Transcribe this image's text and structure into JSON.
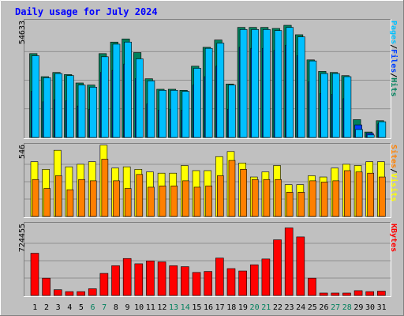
{
  "chart_data": {
    "type": "bar",
    "title": "Daily usage for July 2024",
    "categories": [
      "1",
      "2",
      "3",
      "4",
      "5",
      "6",
      "7",
      "8",
      "9",
      "10",
      "11",
      "12",
      "13",
      "14",
      "15",
      "16",
      "17",
      "18",
      "19",
      "20",
      "21",
      "22",
      "23",
      "24",
      "25",
      "26",
      "27",
      "28",
      "29",
      "30",
      "31"
    ],
    "weekend_days": [
      "6",
      "7",
      "13",
      "14",
      "20",
      "21",
      "27",
      "28"
    ],
    "colors": {
      "hits": "#00805c",
      "files": "#0040ff",
      "pages": "#00c0ff",
      "visits": "#ffff00",
      "sites": "#ff8000",
      "kbytes": "#ff0000",
      "title": "#0000ff",
      "weekend_label": "#00805c"
    },
    "panels": [
      {
        "name": "hits-files-pages",
        "y_max_label": "54633",
        "ylim": [
          0,
          54633
        ],
        "legend": [
          "Pages",
          "/",
          "Files",
          "/",
          "Hits"
        ],
        "series": [
          {
            "name": "Hits",
            "values": [
              40000,
              29000,
              31000,
              30000,
              26000,
              25000,
              40000,
              45500,
              47000,
              40500,
              28000,
              23000,
              23000,
              22500,
              34000,
              43000,
              46500,
              25500,
              52500,
              52500,
              52500,
              52000,
              53500,
              49000,
              37000,
              31500,
              31000,
              29500,
              8500,
              2600,
              8000
            ]
          },
          {
            "name": "Files",
            "values": [
              22000,
              17000,
              18000,
              17500,
              15000,
              13500,
              31000,
              32000,
              35000,
              28000,
              16000,
              13000,
              13500,
              13000,
              25000,
              29000,
              34000,
              13500,
              43000,
              42500,
              42500,
              41500,
              44000,
              39000,
              26500,
              21000,
              20500,
              18500,
              6000,
              2000,
              6500
            ]
          },
          {
            "name": "Pages",
            "values": [
              39000,
              28500,
              30500,
              29500,
              25000,
              24000,
              38500,
              44500,
              45500,
              37500,
              27000,
              22500,
              22500,
              22000,
              33000,
              42500,
              45000,
              25000,
              51500,
              51500,
              51500,
              51000,
              52500,
              48000,
              36500,
              30500,
              30500,
              29000,
              3800,
              1200,
              7500
            ]
          }
        ]
      },
      {
        "name": "visits-sites",
        "y_max_label": "546",
        "ylim": [
          0,
          546
        ],
        "legend": [
          "Sites",
          "/",
          "Visits"
        ],
        "series": [
          {
            "name": "Visits",
            "values": [
              430,
              370,
              520,
              390,
              410,
              430,
              560,
              380,
              390,
              370,
              350,
              340,
              340,
              400,
              360,
              360,
              470,
              510,
              420,
              310,
              350,
              400,
              250,
              250,
              320,
              310,
              380,
              410,
              400,
              430,
              430
            ]
          },
          {
            "name": "Sites",
            "values": [
              290,
              220,
              320,
              210,
              290,
              280,
              450,
              280,
              220,
              330,
              230,
              240,
              240,
              280,
              230,
              240,
              320,
              440,
              370,
              290,
              290,
              290,
              190,
              190,
              280,
              270,
              280,
              360,
              350,
              340,
              310
            ]
          }
        ]
      },
      {
        "name": "kbytes",
        "y_max_label": "724455",
        "ylim": [
          0,
          724455
        ],
        "legend": [
          "KBytes"
        ],
        "series": [
          {
            "name": "KBytes",
            "values": [
              440000,
              180000,
              60000,
              40000,
              40000,
              70000,
              230000,
              310000,
              385000,
              330000,
              360000,
              350000,
              310000,
              300000,
              240000,
              250000,
              390000,
              280000,
              255000,
              320000,
              380000,
              580000,
              704000,
              610000,
              180000,
              25000,
              25000,
              25000,
              50000,
              40000,
              45000
            ]
          }
        ]
      }
    ]
  }
}
